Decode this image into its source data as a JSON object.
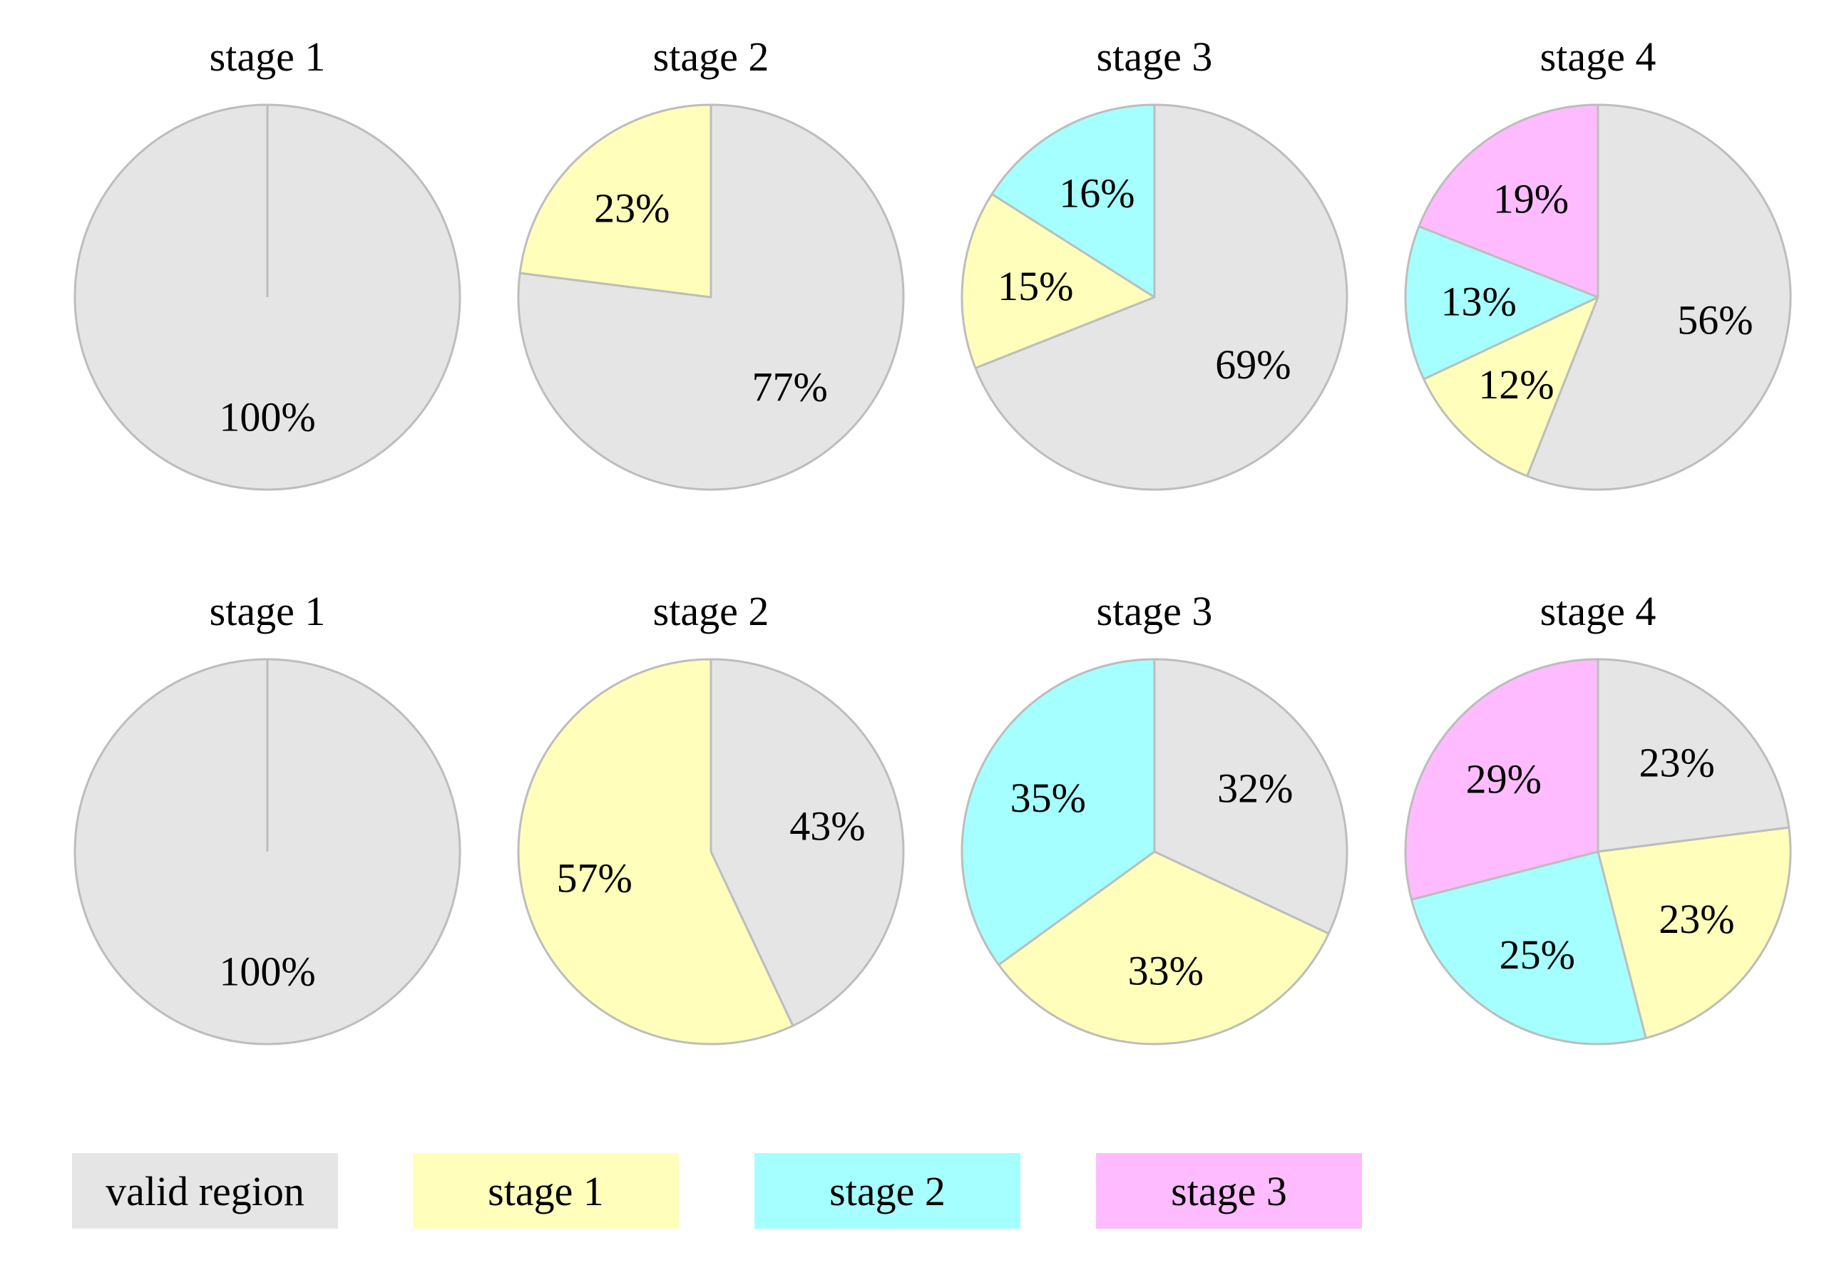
{
  "colors": {
    "valid region": "#e5e5e5",
    "stage 1": "#ffffbb",
    "stage 2": "#a5fffe",
    "stage 3": "#ffbbff",
    "slice_stroke": "#bdbdbd"
  },
  "chart_data": [
    {
      "type": "pie",
      "title": "stage 1",
      "series": [
        {
          "name": "valid region",
          "value": 100,
          "label": "100%"
        }
      ]
    },
    {
      "type": "pie",
      "title": "stage 2",
      "series": [
        {
          "name": "valid region",
          "value": 77,
          "label": "77%"
        },
        {
          "name": "stage 1",
          "value": 23,
          "label": "23%"
        }
      ]
    },
    {
      "type": "pie",
      "title": "stage 3",
      "series": [
        {
          "name": "valid region",
          "value": 69,
          "label": "69%"
        },
        {
          "name": "stage 1",
          "value": 15,
          "label": "15%"
        },
        {
          "name": "stage 2",
          "value": 16,
          "label": "16%"
        }
      ]
    },
    {
      "type": "pie",
      "title": "stage 4",
      "series": [
        {
          "name": "valid region",
          "value": 56,
          "label": "56%"
        },
        {
          "name": "stage 1",
          "value": 12,
          "label": "12%"
        },
        {
          "name": "stage 2",
          "value": 13,
          "label": "13%"
        },
        {
          "name": "stage 3",
          "value": 19,
          "label": "19%"
        }
      ]
    },
    {
      "type": "pie",
      "title": "stage 1",
      "series": [
        {
          "name": "valid region",
          "value": 100,
          "label": "100%"
        }
      ]
    },
    {
      "type": "pie",
      "title": "stage 2",
      "series": [
        {
          "name": "valid region",
          "value": 43,
          "label": "43%"
        },
        {
          "name": "stage 1",
          "value": 57,
          "label": "57%"
        }
      ]
    },
    {
      "type": "pie",
      "title": "stage 3",
      "series": [
        {
          "name": "valid region",
          "value": 32,
          "label": "32%"
        },
        {
          "name": "stage 1",
          "value": 33,
          "label": "33%"
        },
        {
          "name": "stage 2",
          "value": 35,
          "label": "35%"
        }
      ]
    },
    {
      "type": "pie",
      "title": "stage 4",
      "series": [
        {
          "name": "valid region",
          "value": 23,
          "label": "23%"
        },
        {
          "name": "stage 1",
          "value": 23,
          "label": "23%"
        },
        {
          "name": "stage 2",
          "value": 25,
          "label": "25%"
        },
        {
          "name": "stage 3",
          "value": 29,
          "label": "29%"
        }
      ]
    }
  ],
  "legend": {
    "placement": "bottom",
    "items": [
      {
        "name": "valid region",
        "label": "valid region"
      },
      {
        "name": "stage 1",
        "label": "stage 1"
      },
      {
        "name": "stage 2",
        "label": "stage 2"
      },
      {
        "name": "stage 3",
        "label": "stage 3"
      }
    ]
  }
}
